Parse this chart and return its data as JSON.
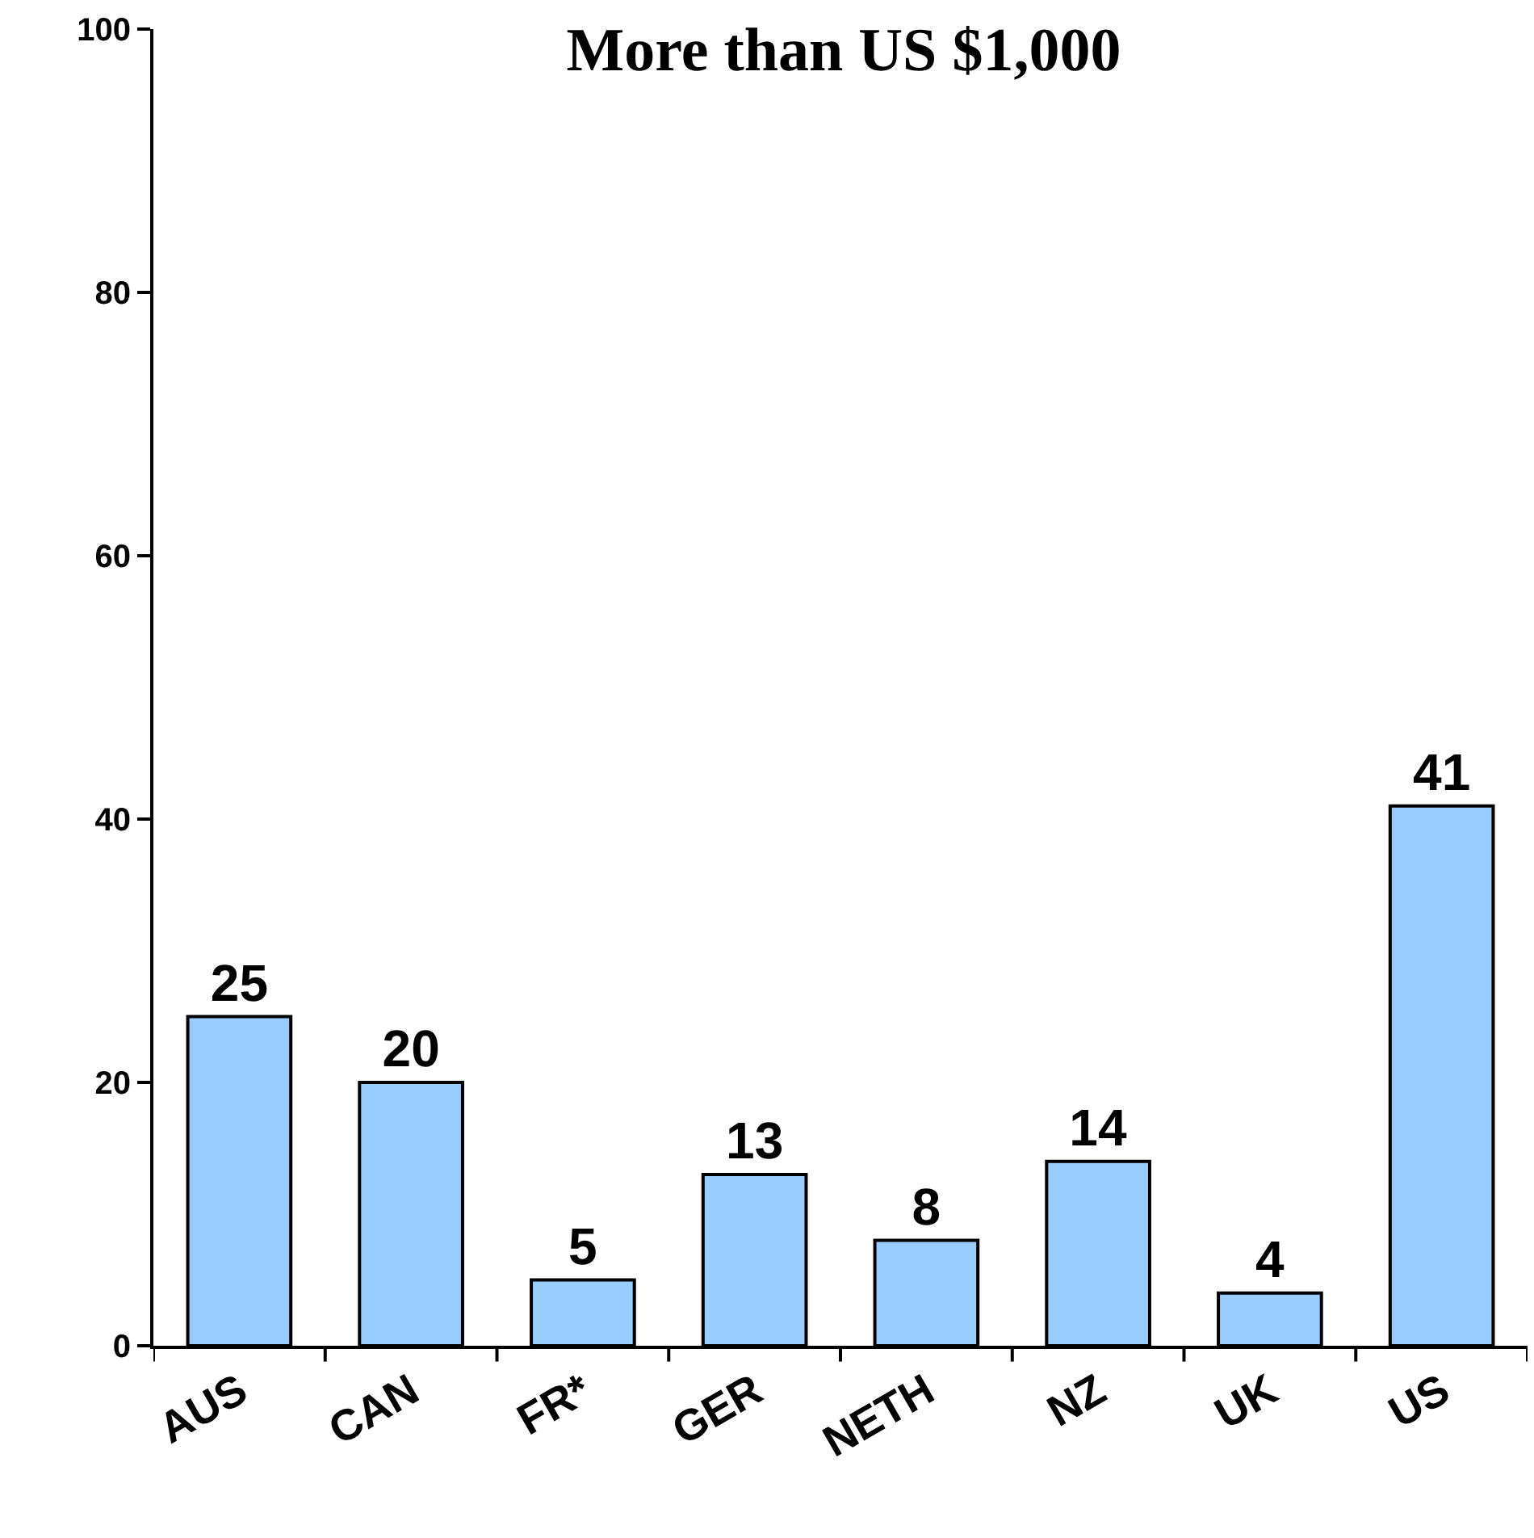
{
  "chart_data": {
    "type": "bar",
    "title": "More than US $1,000",
    "categories": [
      "AUS",
      "CAN",
      "FR*",
      "GER",
      "NETH",
      "NZ",
      "UK",
      "US"
    ],
    "values": [
      25,
      20,
      5,
      13,
      8,
      14,
      4,
      41
    ],
    "color": "#99ccff",
    "ylim": [
      0,
      100
    ],
    "yticks": [
      0,
      20,
      40,
      60,
      80,
      100
    ],
    "data_labels": true
  }
}
